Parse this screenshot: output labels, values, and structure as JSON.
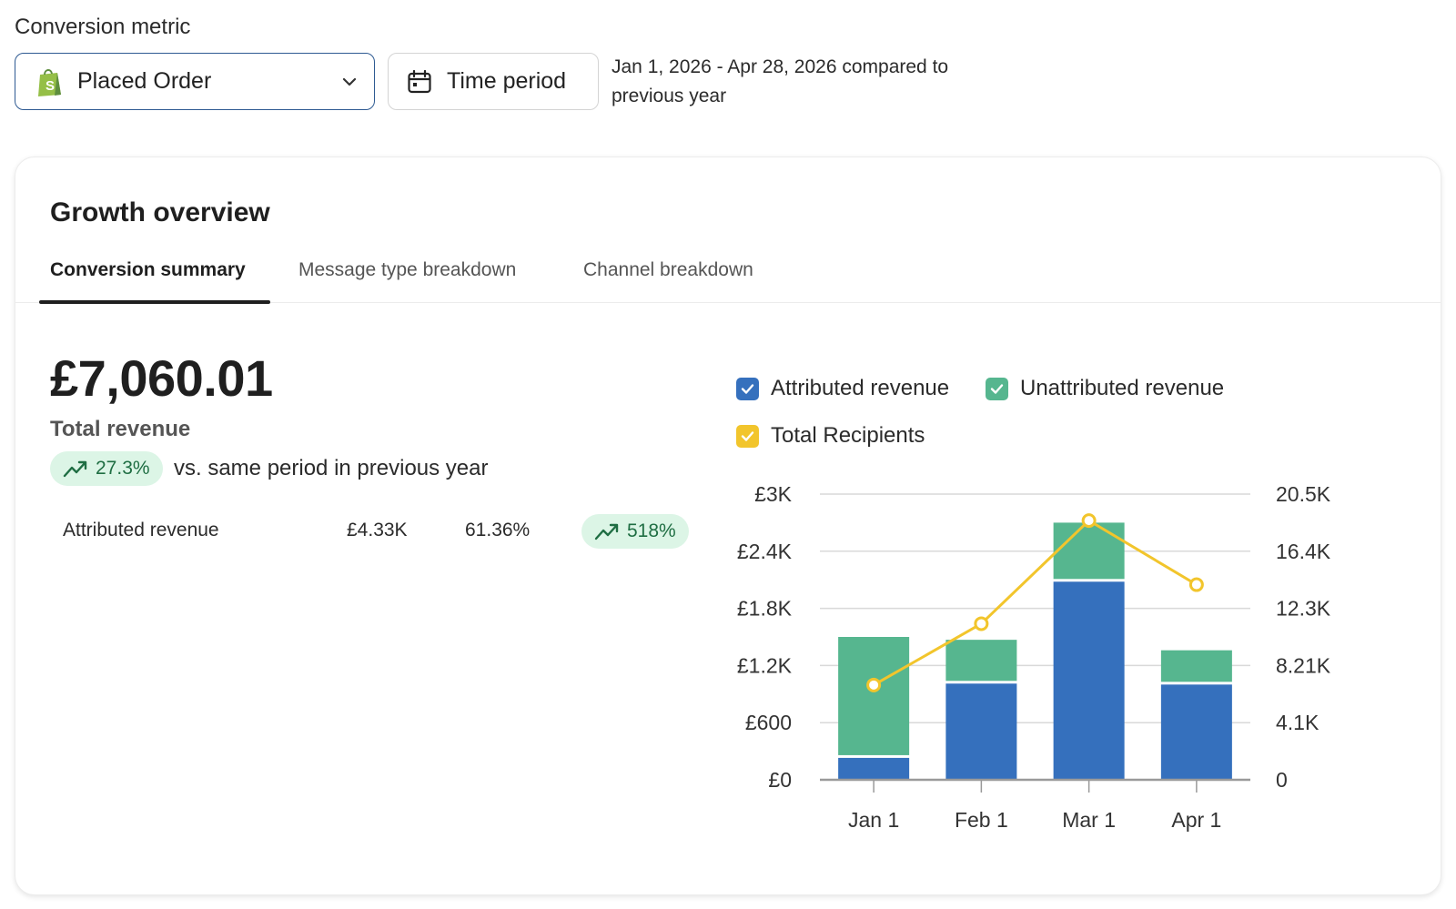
{
  "filters": {
    "metric_label": "Conversion metric",
    "metric_value": "Placed Order",
    "time_button": "Time period",
    "date_range": "Jan 1, 2026 - Apr 28, 2026 compared to previous year"
  },
  "card": {
    "title": "Growth overview",
    "tabs": [
      {
        "label": "Conversion summary",
        "active": true
      },
      {
        "label": "Message type breakdown",
        "active": false
      },
      {
        "label": "Channel breakdown",
        "active": false
      }
    ],
    "summary": {
      "amount": "£7,060.01",
      "label": "Total revenue",
      "change": "27.3%",
      "vs_text": "vs. same period in previous year",
      "row": {
        "name": "Attributed revenue",
        "amount": "£4.33K",
        "share": "61.36%",
        "change": "518%"
      }
    }
  },
  "colors": {
    "attributed": "#3570bd",
    "unattributed": "#56b68f",
    "recipients": "#f2c52c",
    "positive_bg": "#dcf5e6",
    "positive_text": "#1f6e43"
  },
  "chart_data": {
    "type": "bar",
    "stacked": true,
    "categories": [
      "Jan 1",
      "Feb 1",
      "Mar 1",
      "Apr 1"
    ],
    "series": [
      {
        "name": "Attributed revenue",
        "values": [
          230,
          1010,
          2080,
          1000
        ]
      },
      {
        "name": "Unattributed revenue",
        "values": [
          1270,
          460,
          620,
          360
        ]
      }
    ],
    "line_series": {
      "name": "Total Recipients",
      "axis": "right",
      "values": [
        6800,
        11200,
        18600,
        14000
      ]
    },
    "legend": [
      "Attributed revenue",
      "Unattributed revenue",
      "Total Recipients"
    ],
    "ylim": [
      0,
      3000
    ],
    "yticks": [
      "£0",
      "£600",
      "£1.2K",
      "£1.8K",
      "£2.4K",
      "£3K"
    ],
    "y2lim": [
      0,
      20500
    ],
    "y2ticks": [
      "0",
      "4.1K",
      "8.21K",
      "12.3K",
      "16.4K",
      "20.5K"
    ],
    "grid": true,
    "legend_position": "top"
  }
}
